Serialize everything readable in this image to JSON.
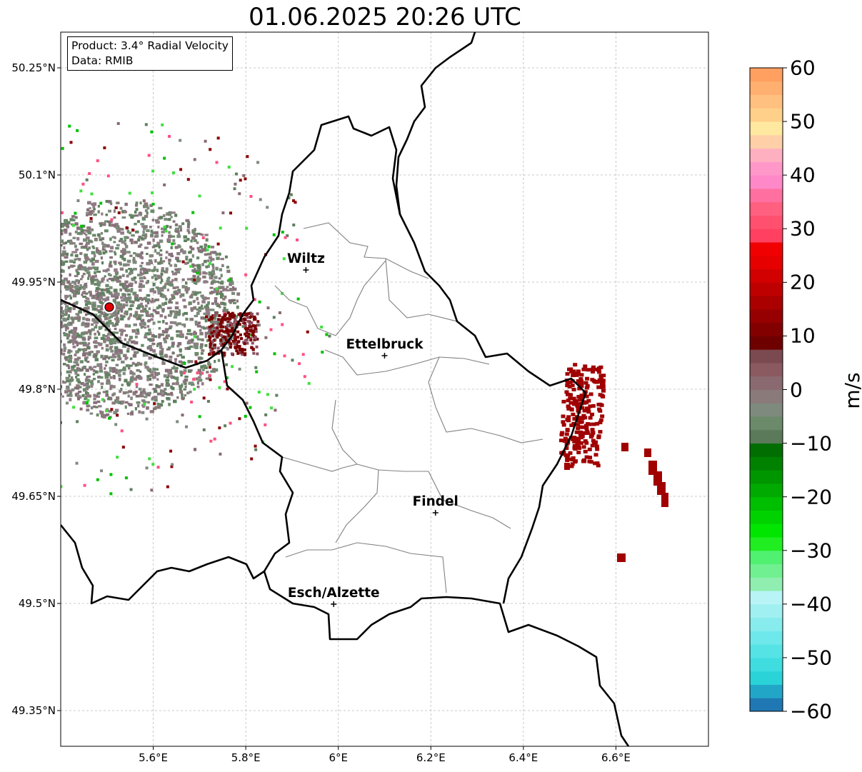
{
  "title": "01.06.2025 20:26 UTC",
  "info": {
    "product": "Product: 3.4° Radial Velocity",
    "data": "Data: RMIB"
  },
  "lat_ticks": [
    {
      "label": "50.25°N",
      "value": 50.25
    },
    {
      "label": "50.1°N",
      "value": 50.1
    },
    {
      "label": "49.95°N",
      "value": 49.95
    },
    {
      "label": "49.8°N",
      "value": 49.8
    },
    {
      "label": "49.65°N",
      "value": 49.65
    },
    {
      "label": "49.5°N",
      "value": 49.5
    },
    {
      "label": "49.35°N",
      "value": 49.35
    }
  ],
  "lon_ticks": [
    {
      "label": "5.6°E",
      "value": 5.6
    },
    {
      "label": "5.8°E",
      "value": 5.8
    },
    {
      "label": "6°E",
      "value": 6.0
    },
    {
      "label": "6.2°E",
      "value": 6.2
    },
    {
      "label": "6.4°E",
      "value": 6.4
    },
    {
      "label": "6.6°E",
      "value": 6.6
    }
  ],
  "cities": [
    {
      "name": "Wiltz",
      "lon": 5.93,
      "lat": 49.967
    },
    {
      "name": "Ettelbruck",
      "lon": 6.1,
      "lat": 49.847
    },
    {
      "name": "Findel",
      "lon": 6.21,
      "lat": 49.627
    },
    {
      "name": "Esch/Alzette",
      "lon": 5.99,
      "lat": 49.499
    }
  ],
  "radar_site": {
    "lon": 5.505,
    "lat": 49.915
  },
  "colorbar": {
    "unit": "m/s",
    "min": -60,
    "max": 60,
    "ticks": [
      {
        "label": "60",
        "value": 60
      },
      {
        "label": "50",
        "value": 50
      },
      {
        "label": "40",
        "value": 40
      },
      {
        "label": "30",
        "value": 30
      },
      {
        "label": "20",
        "value": 20
      },
      {
        "label": "10",
        "value": 10
      },
      {
        "label": "0",
        "value": 0
      },
      {
        "label": "−10",
        "value": -10
      },
      {
        "label": "−20",
        "value": -20
      },
      {
        "label": "−30",
        "value": -30
      },
      {
        "label": "−40",
        "value": -40
      },
      {
        "label": "−50",
        "value": -50
      },
      {
        "label": "−60",
        "value": -60
      }
    ],
    "colors": [
      "#1f78b4",
      "#22a6c8",
      "#2ad3d8",
      "#3fdde0",
      "#56e3e6",
      "#6ee8ea",
      "#88ecee",
      "#a0f0f2",
      "#b8f4f6",
      "#90eeb0",
      "#70f090",
      "#50f070",
      "#20ee20",
      "#00e600",
      "#00d200",
      "#00be00",
      "#00aa00",
      "#009600",
      "#008200",
      "#006e00",
      "#5a7a5a",
      "#6a8a6a",
      "#7e8a7e",
      "#8a7a7a",
      "#8a6a70",
      "#8a5a60",
      "#7a4a50",
      "#6e0000",
      "#820000",
      "#960000",
      "#aa0000",
      "#be0000",
      "#d20000",
      "#e60000",
      "#f00000",
      "#ff4060",
      "#ff5070",
      "#ff6080",
      "#ff70a0",
      "#ff88c8",
      "#ff98c8",
      "#ffb0c0",
      "#ffd0a8",
      "#ffe8a0",
      "#ffd08a",
      "#ffc080",
      "#ffb070",
      "#ffa060"
    ]
  }
}
